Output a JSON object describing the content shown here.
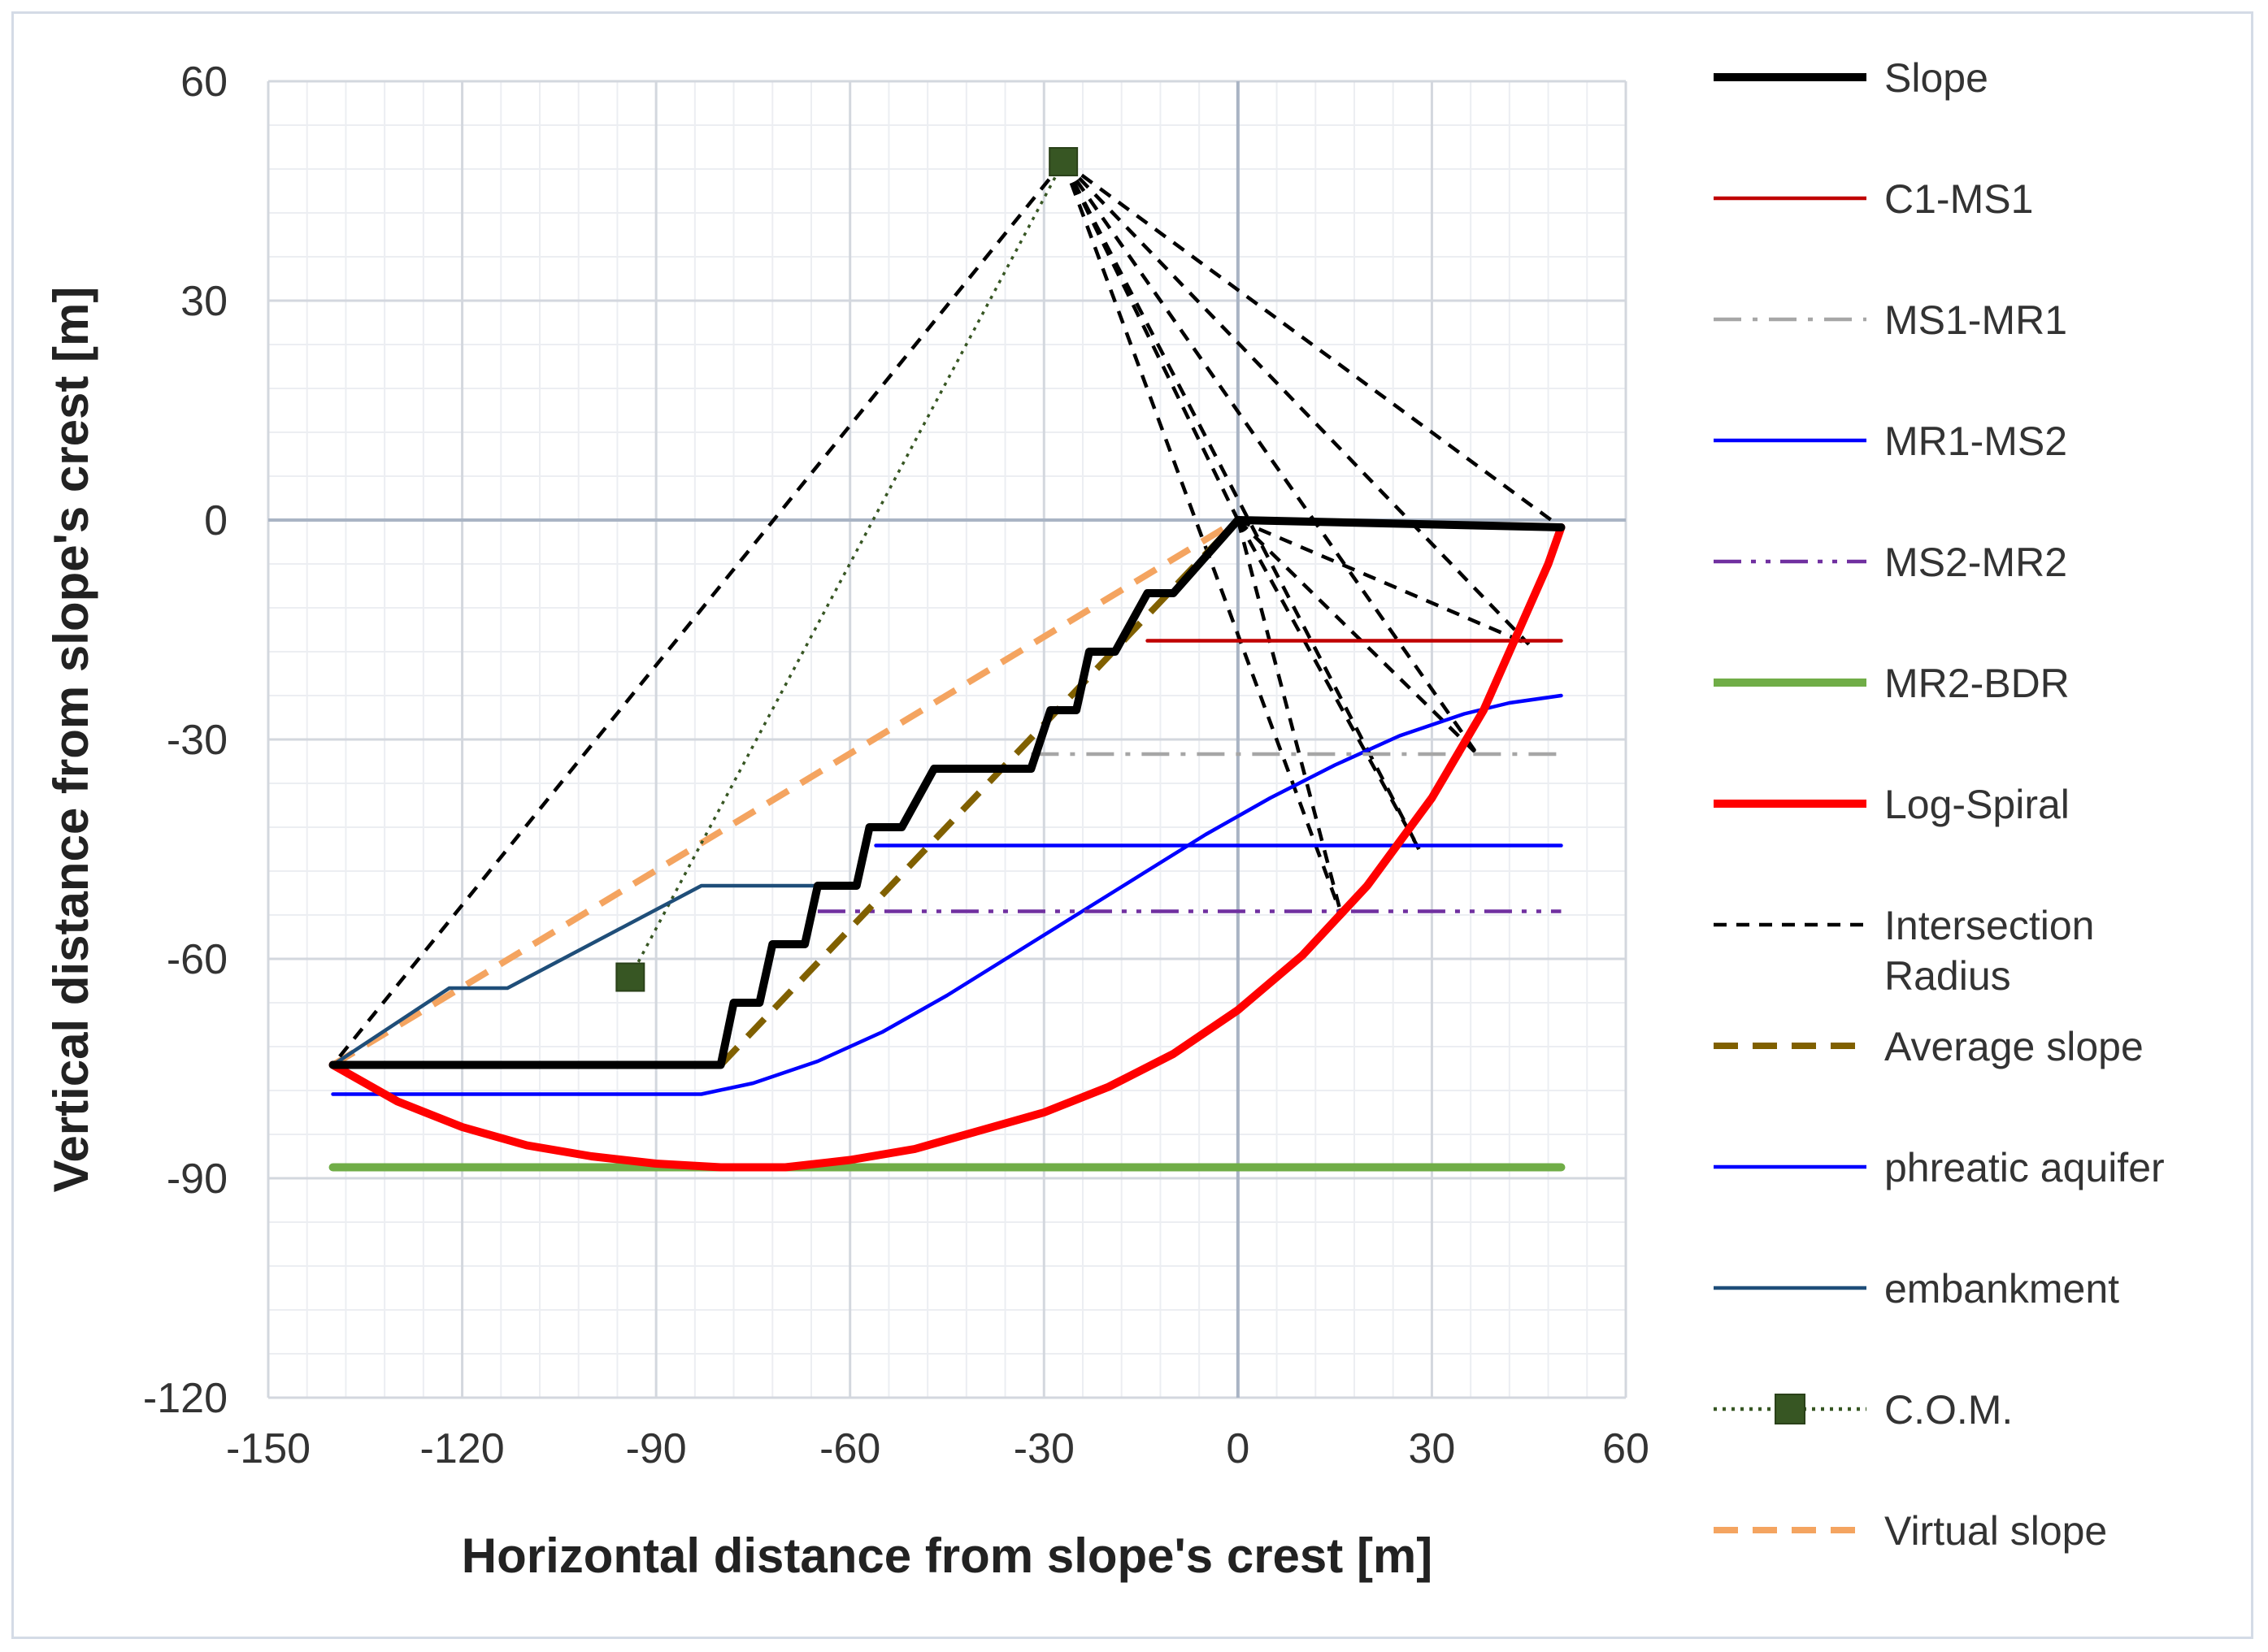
{
  "chart_data": {
    "type": "line",
    "xlabel": "Horizontal distance from slope's crest [m]",
    "ylabel": "Vertical distance from slope's crest [m]",
    "xlim": [
      -150,
      60
    ],
    "ylim": [
      -120,
      60
    ],
    "x_ticks": [
      -150,
      -120,
      -90,
      -60,
      -30,
      0,
      30,
      60
    ],
    "y_ticks": [
      60,
      30,
      0,
      -30,
      -60,
      -90,
      -120
    ],
    "x_tick_labels": [
      "-150",
      "-120",
      "-90",
      "-60",
      "-30",
      "0",
      "30",
      "60"
    ],
    "y_tick_labels": [
      "60",
      "30",
      "0",
      "-30",
      "-60",
      "-90",
      "-120"
    ],
    "grid": true,
    "legend_position": "right",
    "series": [
      {
        "name": "Slope",
        "color": "#000000",
        "style": "solid-thick",
        "points": [
          [
            -140,
            -74.5
          ],
          [
            -80,
            -74.5
          ],
          [
            -78,
            -66
          ],
          [
            -74,
            -66
          ],
          [
            -72,
            -58
          ],
          [
            -67,
            -58
          ],
          [
            -65,
            -50
          ],
          [
            -59,
            -50
          ],
          [
            -57,
            -42
          ],
          [
            -52,
            -42
          ],
          [
            -47,
            -34
          ],
          [
            -32,
            -34
          ],
          [
            -29,
            -26
          ],
          [
            -25,
            -26
          ],
          [
            -23,
            -18
          ],
          [
            -19,
            -18
          ],
          [
            -14,
            -10
          ],
          [
            -10,
            -10
          ],
          [
            0,
            0
          ],
          [
            50,
            -1
          ]
        ]
      },
      {
        "name": "C1-MS1",
        "color": "#c00000",
        "style": "solid",
        "points": [
          [
            -14,
            -16.5
          ],
          [
            50,
            -16.5
          ]
        ]
      },
      {
        "name": "MS1-MR1",
        "color": "#a6a6a6",
        "style": "dash-dot",
        "points": [
          [
            -32,
            -32
          ],
          [
            50,
            -32
          ]
        ]
      },
      {
        "name": "MR1-MS2",
        "color": "#0000ff",
        "style": "solid",
        "points": [
          [
            -56,
            -44.5
          ],
          [
            50,
            -44.5
          ]
        ]
      },
      {
        "name": "MS2-MR2",
        "color": "#7030a0",
        "style": "dash-dot-dot",
        "points": [
          [
            -65,
            -53.5
          ],
          [
            50,
            -53.5
          ]
        ]
      },
      {
        "name": "MR2-BDR",
        "color": "#70ad47",
        "style": "solid-thick",
        "points": [
          [
            -140,
            -88.5
          ],
          [
            50,
            -88.5
          ]
        ]
      },
      {
        "name": "Log-Spiral",
        "color": "#ff0000",
        "style": "solid-thick",
        "points": [
          [
            -140,
            -74.5
          ],
          [
            -130,
            -79.5
          ],
          [
            -120,
            -83
          ],
          [
            -110,
            -85.5
          ],
          [
            -100,
            -87
          ],
          [
            -90,
            -88
          ],
          [
            -80,
            -88.5
          ],
          [
            -70,
            -88.5
          ],
          [
            -60,
            -87.5
          ],
          [
            -50,
            -86
          ],
          [
            -40,
            -83.5
          ],
          [
            -30,
            -81
          ],
          [
            -20,
            -77.5
          ],
          [
            -10,
            -73
          ],
          [
            0,
            -67
          ],
          [
            10,
            -59.5
          ],
          [
            20,
            -50
          ],
          [
            30,
            -38
          ],
          [
            38,
            -26
          ],
          [
            44,
            -14
          ],
          [
            48,
            -6
          ],
          [
            50,
            -1
          ]
        ]
      },
      {
        "name": "Intersection Radius",
        "color": "#000000",
        "style": "dashed",
        "segments": [
          [
            [
              -27,
              49
            ],
            [
              -140,
              -74.5
            ]
          ],
          [
            [
              -27,
              49
            ],
            [
              0,
              0
            ]
          ],
          [
            [
              -27,
              49
            ],
            [
              16,
              -54
            ]
          ],
          [
            [
              -27,
              49
            ],
            [
              28,
              -45
            ]
          ],
          [
            [
              -27,
              49
            ],
            [
              37,
              -32
            ]
          ],
          [
            [
              -27,
              49
            ],
            [
              45,
              -17
            ]
          ],
          [
            [
              -27,
              49
            ],
            [
              50,
              -1
            ]
          ],
          [
            [
              0,
              0
            ],
            [
              16,
              -54
            ]
          ],
          [
            [
              0,
              0
            ],
            [
              28,
              -45
            ]
          ],
          [
            [
              0,
              0
            ],
            [
              37,
              -32
            ]
          ],
          [
            [
              0,
              0
            ],
            [
              45,
              -17
            ]
          ]
        ]
      },
      {
        "name": "Average slope",
        "color": "#806000",
        "style": "dashed-thick",
        "points": [
          [
            -80,
            -74.5
          ],
          [
            0,
            0
          ]
        ]
      },
      {
        "name": "phreatic aquifer",
        "color": "#0000ff",
        "style": "solid",
        "points": [
          [
            -140,
            -78.5
          ],
          [
            -83,
            -78.5
          ],
          [
            -75,
            -77
          ],
          [
            -65,
            -74
          ],
          [
            -55,
            -70
          ],
          [
            -45,
            -65
          ],
          [
            -35,
            -59.5
          ],
          [
            -25,
            -54
          ],
          [
            -15,
            -48.5
          ],
          [
            -5,
            -43
          ],
          [
            5,
            -38
          ],
          [
            15,
            -33.5
          ],
          [
            25,
            -29.5
          ],
          [
            35,
            -26.5
          ],
          [
            42,
            -25
          ],
          [
            50,
            -24
          ]
        ]
      },
      {
        "name": "embankment",
        "color": "#1f4e79",
        "style": "solid",
        "points": [
          [
            -140,
            -74.5
          ],
          [
            -122,
            -64
          ],
          [
            -113,
            -64
          ],
          [
            -83,
            -50
          ],
          [
            -60,
            -50
          ]
        ]
      },
      {
        "name": "C.O.M.",
        "color": "#375623",
        "style": "dotted-marker",
        "points": [
          [
            -27,
            49
          ],
          [
            -94,
            -62.5
          ]
        ]
      },
      {
        "name": "Virtual slope",
        "color": "#f4a460",
        "style": "dashed-thick",
        "points": [
          [
            -140,
            -74.5
          ],
          [
            0,
            0
          ]
        ]
      }
    ]
  }
}
